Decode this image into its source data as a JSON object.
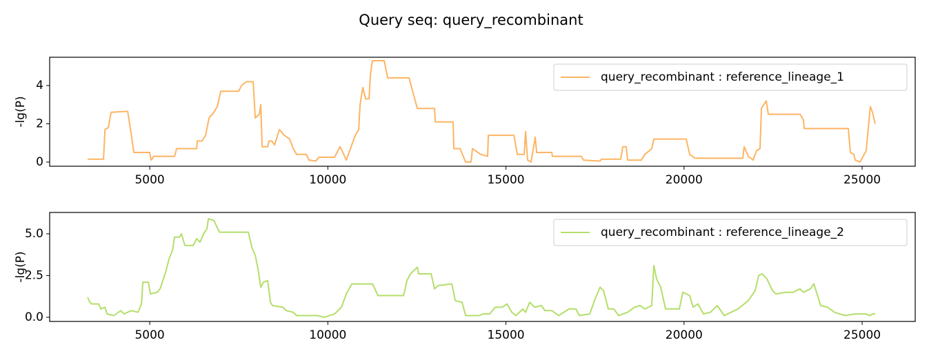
{
  "title": "Query seq: query_recombinant",
  "chart_data": [
    {
      "type": "line",
      "ylabel": "-lg(P)",
      "legend": "upper right",
      "x": [
        3258,
        3703,
        3742,
        3838,
        3916,
        4380,
        4477,
        4555,
        5000,
        5039,
        5116,
        5697,
        5755,
        6317,
        6336,
        6471,
        6568,
        6665,
        6800,
        6897,
        6994,
        7497,
        7575,
        7711,
        7904,
        7962,
        8078,
        8117,
        8156,
        8311,
        8349,
        8427,
        8504,
        8640,
        8775,
        8930,
        9027,
        9124,
        9395,
        9472,
        9666,
        9743,
        10189,
        10344,
        10421,
        10518,
        10634,
        10770,
        10866,
        10905,
        10983,
        11060,
        11157,
        11195,
        11254,
        11583,
        11680,
        12280,
        12512,
        12996,
        13015,
        13518,
        13538,
        13712,
        13867,
        14022,
        14060,
        14293,
        14486,
        14506,
        15222,
        15319,
        15513,
        15551,
        15609,
        15706,
        15822,
        15861,
        16287,
        16306,
        17119,
        17177,
        17642,
        17681,
        18223,
        18281,
        18378,
        18416,
        18804,
        18900,
        19094,
        19152,
        20062,
        20159,
        20314,
        21650,
        21688,
        21805,
        21940,
        22037,
        22134,
        22172,
        22308,
        22366,
        23256,
        23353,
        23373,
        24612,
        24670,
        24767,
        24805,
        24941,
        25115,
        25173,
        25231,
        25289,
        25367
      ],
      "series": [
        {
          "name": "query_recombinant : reference_lineage_1",
          "color": "#fdb462",
          "values": [
            0.15,
            0.15,
            1.7,
            1.8,
            2.6,
            2.65,
            1.5,
            0.5,
            0.5,
            0.1,
            0.3,
            0.3,
            0.7,
            0.7,
            1.1,
            1.1,
            1.4,
            2.3,
            2.6,
            2.9,
            3.7,
            3.7,
            4.0,
            4.2,
            4.2,
            2.3,
            2.5,
            3.0,
            0.8,
            0.8,
            1.1,
            1.1,
            0.9,
            1.7,
            1.4,
            1.2,
            0.7,
            0.4,
            0.4,
            0.1,
            0.05,
            0.25,
            0.25,
            0.8,
            0.5,
            0.1,
            0.7,
            1.4,
            1.7,
            3.0,
            3.9,
            3.3,
            3.3,
            4.6,
            5.3,
            5.3,
            4.4,
            4.4,
            2.8,
            2.8,
            2.1,
            2.1,
            0.7,
            0.7,
            0.0,
            0.0,
            0.7,
            0.4,
            0.3,
            1.4,
            1.4,
            0.4,
            0.4,
            1.6,
            0.1,
            0.0,
            1.3,
            0.5,
            0.5,
            0.3,
            0.3,
            0.1,
            0.05,
            0.15,
            0.15,
            0.8,
            0.8,
            0.1,
            0.1,
            0.4,
            0.7,
            1.2,
            1.2,
            0.4,
            0.2,
            0.2,
            0.8,
            0.3,
            0.1,
            0.6,
            0.7,
            2.8,
            3.2,
            2.5,
            2.5,
            2.2,
            1.75,
            1.75,
            0.5,
            0.4,
            0.1,
            0.0,
            0.6,
            1.8,
            2.9,
            2.6,
            2.0
          ]
        }
      ],
      "xlim": [
        2190,
        26490
      ],
      "ylim": [
        -0.22,
        5.48
      ],
      "xticks": [
        5000,
        10000,
        15000,
        20000,
        25000
      ],
      "yticks": [
        0,
        2,
        4
      ]
    },
    {
      "type": "line",
      "ylabel": "-lg(P)",
      "legend": "upper right",
      "x": [
        3258,
        3316,
        3374,
        3568,
        3626,
        3742,
        3800,
        3993,
        4187,
        4284,
        4477,
        4671,
        4768,
        4806,
        4961,
        5019,
        5213,
        5290,
        5445,
        5542,
        5639,
        5697,
        5832,
        5890,
        5987,
        6220,
        6317,
        6413,
        6510,
        6607,
        6646,
        6800,
        6955,
        7768,
        7865,
        7962,
        8039,
        8117,
        8194,
        8311,
        8388,
        8446,
        8736,
        8833,
        9027,
        9124,
        9705,
        9898,
        10189,
        10383,
        10518,
        10673,
        11254,
        11409,
        12125,
        12222,
        12319,
        12416,
        12512,
        12551,
        12900,
        12996,
        13093,
        13480,
        13577,
        13770,
        13867,
        14254,
        14351,
        14545,
        14700,
        14894,
        15029,
        15165,
        15280,
        15474,
        15551,
        15668,
        15803,
        15997,
        16094,
        16287,
        16481,
        16771,
        16965,
        17061,
        17352,
        17487,
        17642,
        17739,
        17874,
        18029,
        18165,
        18416,
        18610,
        18765,
        18900,
        19094,
        19152,
        19230,
        19346,
        19481,
        19868,
        19965,
        20159,
        20256,
        20391,
        20546,
        20740,
        20933,
        21127,
        21320,
        21514,
        21805,
        21998,
        22095,
        22192,
        22327,
        22482,
        22579,
        22870,
        23063,
        23256,
        23353,
        23547,
        23644,
        23837,
        24031,
        24224,
        24515,
        24805,
        25096,
        25231,
        25289,
        25367
      ],
      "series": [
        {
          "name": "query_recombinant : reference_lineage_2",
          "color": "#b3de69",
          "values": [
            1.2,
            0.9,
            0.8,
            0.8,
            0.5,
            0.6,
            0.2,
            0.1,
            0.4,
            0.2,
            0.4,
            0.3,
            0.8,
            2.1,
            2.1,
            1.4,
            1.5,
            1.7,
            2.7,
            3.5,
            4.0,
            4.8,
            4.8,
            5.0,
            4.3,
            4.3,
            4.7,
            4.5,
            5.0,
            5.3,
            5.9,
            5.8,
            5.1,
            5.1,
            4.2,
            3.7,
            2.9,
            1.8,
            2.1,
            2.2,
            0.9,
            0.7,
            0.6,
            0.4,
            0.3,
            0.1,
            0.1,
            0.0,
            0.2,
            0.6,
            1.4,
            2.0,
            2.0,
            1.3,
            1.3,
            2.2,
            2.6,
            2.8,
            3.0,
            2.6,
            2.6,
            1.7,
            1.9,
            2.0,
            1.0,
            0.9,
            0.1,
            0.1,
            0.2,
            0.2,
            0.6,
            0.6,
            0.8,
            0.3,
            0.1,
            0.5,
            0.3,
            0.9,
            0.6,
            0.7,
            0.4,
            0.4,
            0.1,
            0.5,
            0.5,
            0.1,
            0.2,
            1.0,
            1.8,
            1.6,
            0.5,
            0.5,
            0.1,
            0.3,
            0.6,
            0.7,
            0.5,
            0.7,
            3.1,
            2.3,
            1.8,
            0.5,
            0.5,
            1.5,
            1.3,
            0.6,
            0.8,
            0.2,
            0.3,
            0.7,
            0.1,
            0.3,
            0.5,
            1.0,
            1.6,
            2.5,
            2.6,
            2.3,
            1.6,
            1.4,
            1.5,
            1.5,
            1.7,
            1.5,
            1.7,
            2.0,
            0.7,
            0.6,
            0.3,
            0.1,
            0.2,
            0.2,
            0.1,
            0.2,
            0.2
          ]
        }
      ],
      "xlim": [
        2190,
        26490
      ],
      "ylim": [
        -0.25,
        6.28
      ],
      "xticks": [
        5000,
        10000,
        15000,
        20000,
        25000
      ],
      "yticks": [
        {
          "value": 0,
          "label": "0.0"
        },
        2.5,
        {
          "value": 5,
          "label": "5.0"
        }
      ]
    }
  ]
}
